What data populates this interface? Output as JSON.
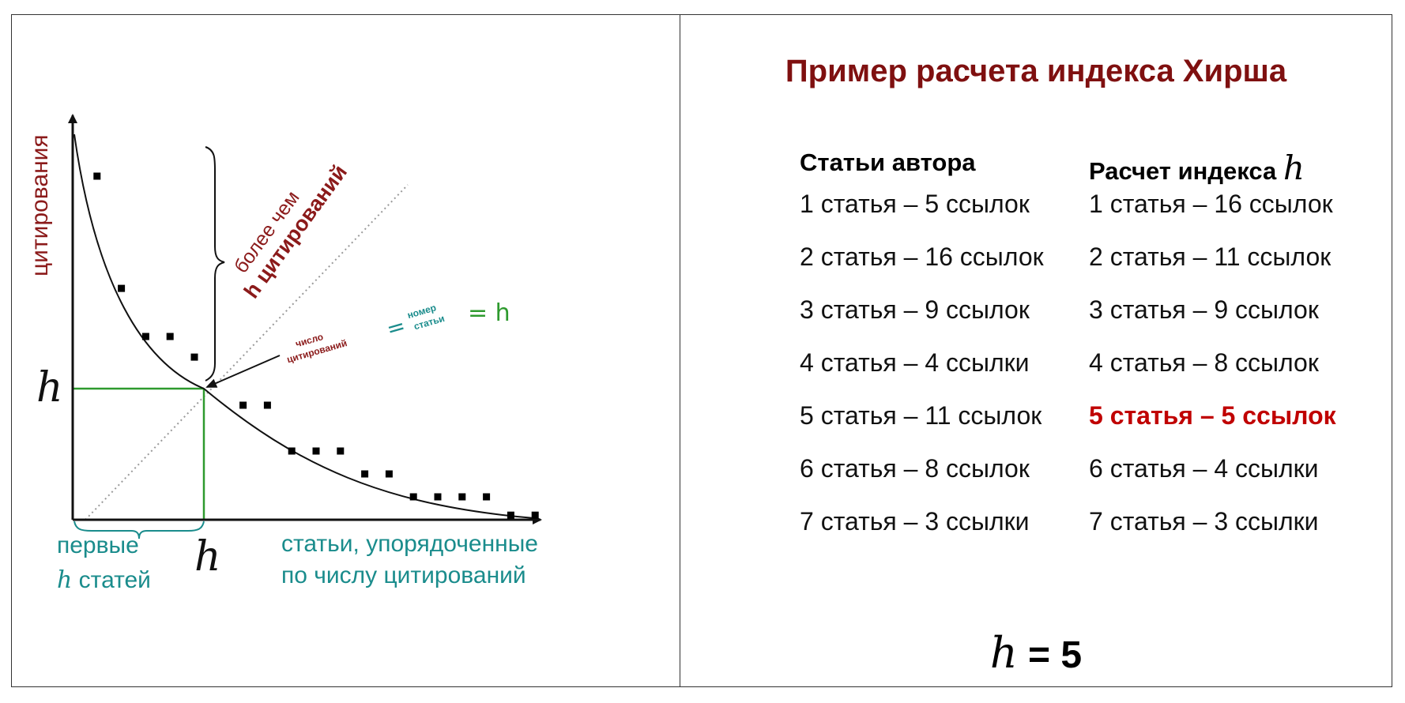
{
  "diagram": {
    "y_axis_label": "цитирования",
    "h_symbol": "h",
    "above_label_line1": "более чем",
    "above_label_line2": "h цитирований",
    "eq_left_line1": "число",
    "eq_left_line2": "цитирований",
    "eq_sign": "=",
    "eq_right_line1": "номер",
    "eq_right_line2": "статьи",
    "eq_result": "= h",
    "first_label_line1": "первые",
    "first_label_line2_h": "h",
    "first_label_line2_rest": " статей",
    "x_axis_label_line1": "статьи, упорядоченные",
    "x_axis_label_line2": "по числу цитирований",
    "colors": {
      "axis": "#111111",
      "green": "#2e9a2e",
      "dark_red": "#8b1a1a",
      "teal": "#1a8c8c",
      "marker": "#000000"
    },
    "points": [
      {
        "rank": 1,
        "citations": 15.0
      },
      {
        "rank": 2,
        "citations": 10.1
      },
      {
        "rank": 3,
        "citations": 8.0
      },
      {
        "rank": 4,
        "citations": 8.0
      },
      {
        "rank": 5,
        "citations": 7.1
      },
      {
        "rank": 7,
        "citations": 5.0
      },
      {
        "rank": 8,
        "citations": 5.0
      },
      {
        "rank": 9,
        "citations": 3.0
      },
      {
        "rank": 10,
        "citations": 3.0
      },
      {
        "rank": 11,
        "citations": 3.0
      },
      {
        "rank": 12,
        "citations": 2.0
      },
      {
        "rank": 13,
        "citations": 2.0
      },
      {
        "rank": 14,
        "citations": 1.0
      },
      {
        "rank": 15,
        "citations": 1.0
      },
      {
        "rank": 16,
        "citations": 1.0
      },
      {
        "rank": 17,
        "citations": 1.0
      },
      {
        "rank": 18,
        "citations": 0.2
      },
      {
        "rank": 19,
        "citations": 0.2
      }
    ]
  },
  "right": {
    "title": "Пример расчета индекса Хирша",
    "col1_header": "Статьи автора",
    "col2_header": "Расчет индекса",
    "col2_header_h": "h",
    "col1_rows": [
      "1 статья – 5 ссылок",
      "2 статья – 16 ссылок",
      "3 статья – 9 ссылок",
      "4 статья – 4 ссылки",
      "5 статья – 11 ссылок",
      "6 статья – 8 ссылок",
      "7 статья – 3 ссылки"
    ],
    "col2_rows": [
      "1 статья – 16 ссылок",
      "2 статья – 11 ссылок",
      "3 статья – 9 ссылок",
      "4 статья – 8 ссылок",
      "5 статья – 5 ссылок",
      "6 статья – 4 ссылки",
      "7 статья – 3 ссылки"
    ],
    "highlight_index": 4,
    "result_h": "h",
    "result_rest": " = 5",
    "highlight_color": "#c00000",
    "title_color": "#7f1010"
  }
}
